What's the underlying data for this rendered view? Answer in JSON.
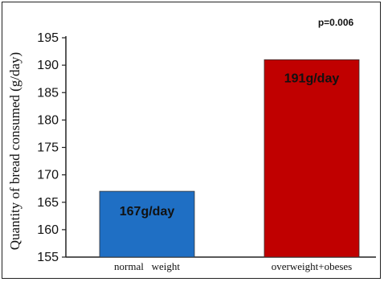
{
  "chart_data": {
    "type": "bar",
    "categories": [
      "normal   weight",
      "overweight+obeses"
    ],
    "values": [
      167,
      191
    ],
    "data_labels": [
      "167g/day",
      "191g/day"
    ],
    "colors": [
      "#1f6fc4",
      "#c00000"
    ],
    "title": "",
    "xlabel": "",
    "ylabel": "Quantity of bread  consumed (g/day)",
    "ylim": [
      155,
      195
    ],
    "yticks": [
      155,
      160,
      165,
      170,
      175,
      180,
      185,
      190,
      195
    ],
    "grid": false,
    "annotation": "p=0.006"
  }
}
